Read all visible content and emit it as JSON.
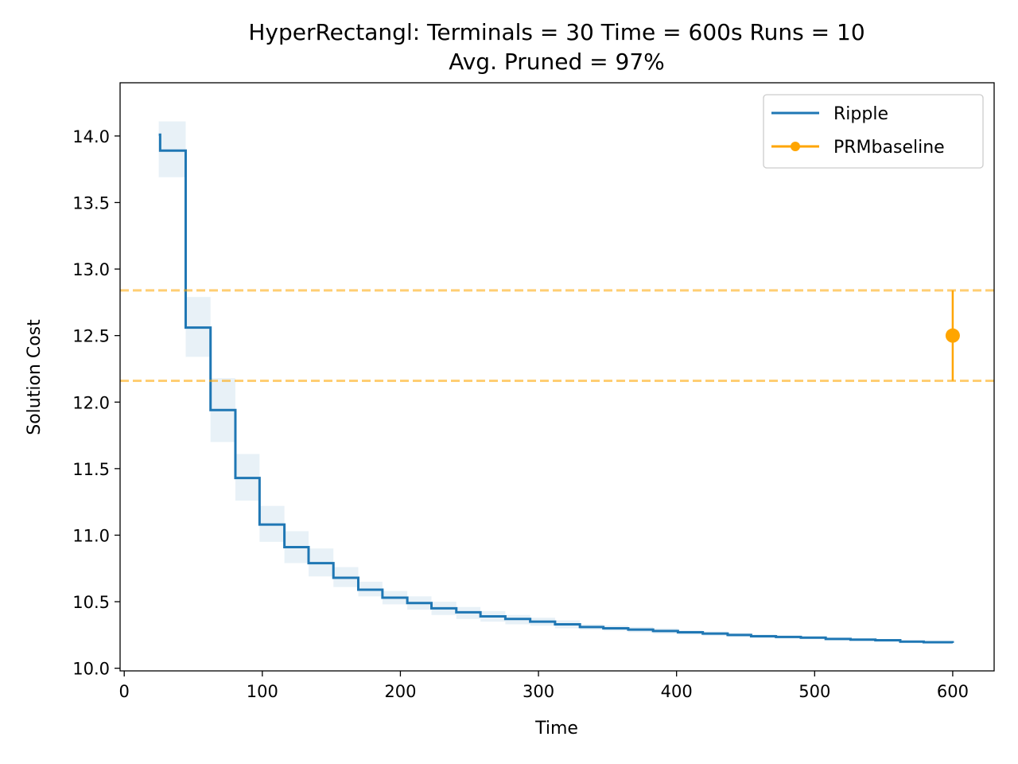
{
  "chart_data": {
    "type": "line",
    "title": "HyperRectangl:  Terminals = 30  Time = 600s  Runs = 10",
    "subtitle": "Avg. Pruned = 97%",
    "xlabel": "Time",
    "ylabel": "Solution Cost",
    "xlim": [
      -3,
      630
    ],
    "ylim": [
      9.98,
      14.4
    ],
    "xticks": [
      0,
      100,
      200,
      300,
      400,
      500,
      600
    ],
    "yticks": [
      10.0,
      10.5,
      11.0,
      11.5,
      12.0,
      12.5,
      13.0,
      13.5,
      14.0
    ],
    "xtick_labels": [
      "0",
      "100",
      "200",
      "300",
      "400",
      "500",
      "600"
    ],
    "ytick_labels": [
      "10.0",
      "10.5",
      "11.0",
      "11.5",
      "12.0",
      "12.5",
      "13.0",
      "13.5",
      "14.0"
    ],
    "grid": false,
    "legend_position": "top-right",
    "series": [
      {
        "name": "Ripple",
        "style": "step",
        "color": "#1f77b4",
        "x": [
          25,
          26,
          44.5,
          62.5,
          80.5,
          98,
          116,
          133.5,
          151.5,
          169.5,
          187,
          205,
          222.5,
          240.5,
          258,
          276,
          294,
          312,
          330,
          347,
          365,
          383,
          401,
          419,
          437,
          454,
          472,
          490,
          508,
          526,
          544,
          562,
          579,
          600
        ],
        "y": [
          14.01,
          13.89,
          12.56,
          11.94,
          11.43,
          11.08,
          10.91,
          10.79,
          10.68,
          10.59,
          10.53,
          10.49,
          10.45,
          10.42,
          10.39,
          10.37,
          10.35,
          10.33,
          10.31,
          10.3,
          10.29,
          10.28,
          10.27,
          10.26,
          10.25,
          10.24,
          10.235,
          10.23,
          10.22,
          10.215,
          10.21,
          10.2,
          10.195,
          10.19
        ],
        "band_lower": [
          13.69,
          13.69,
          12.34,
          11.7,
          11.26,
          10.95,
          10.79,
          10.69,
          10.61,
          10.54,
          10.48,
          10.44,
          10.4,
          10.37,
          10.35,
          10.33,
          10.32,
          10.3,
          10.29,
          10.28,
          10.27,
          10.26,
          10.25,
          10.245,
          10.235,
          10.23,
          10.225,
          10.22,
          10.21,
          10.205,
          10.2,
          10.195,
          10.19,
          10.185
        ],
        "band_upper": [
          14.11,
          14.11,
          12.79,
          12.18,
          11.61,
          11.22,
          11.03,
          10.9,
          10.76,
          10.65,
          10.58,
          10.54,
          10.5,
          10.46,
          10.43,
          10.4,
          10.38,
          10.36,
          10.33,
          10.32,
          10.31,
          10.3,
          10.285,
          10.275,
          10.265,
          10.255,
          10.245,
          10.24,
          10.23,
          10.225,
          10.22,
          10.21,
          10.205,
          10.2
        ]
      },
      {
        "name": "PRMbaseline",
        "style": "point-errorbar",
        "color": "#ffa500",
        "x": [
          600
        ],
        "y": [
          12.5
        ],
        "error_lower": 12.16,
        "error_upper": 12.84
      }
    ],
    "reference_lines": [
      {
        "y": 12.84,
        "style": "dashed",
        "color": "#ffa500"
      },
      {
        "y": 12.16,
        "style": "dashed",
        "color": "#ffa500"
      }
    ]
  }
}
